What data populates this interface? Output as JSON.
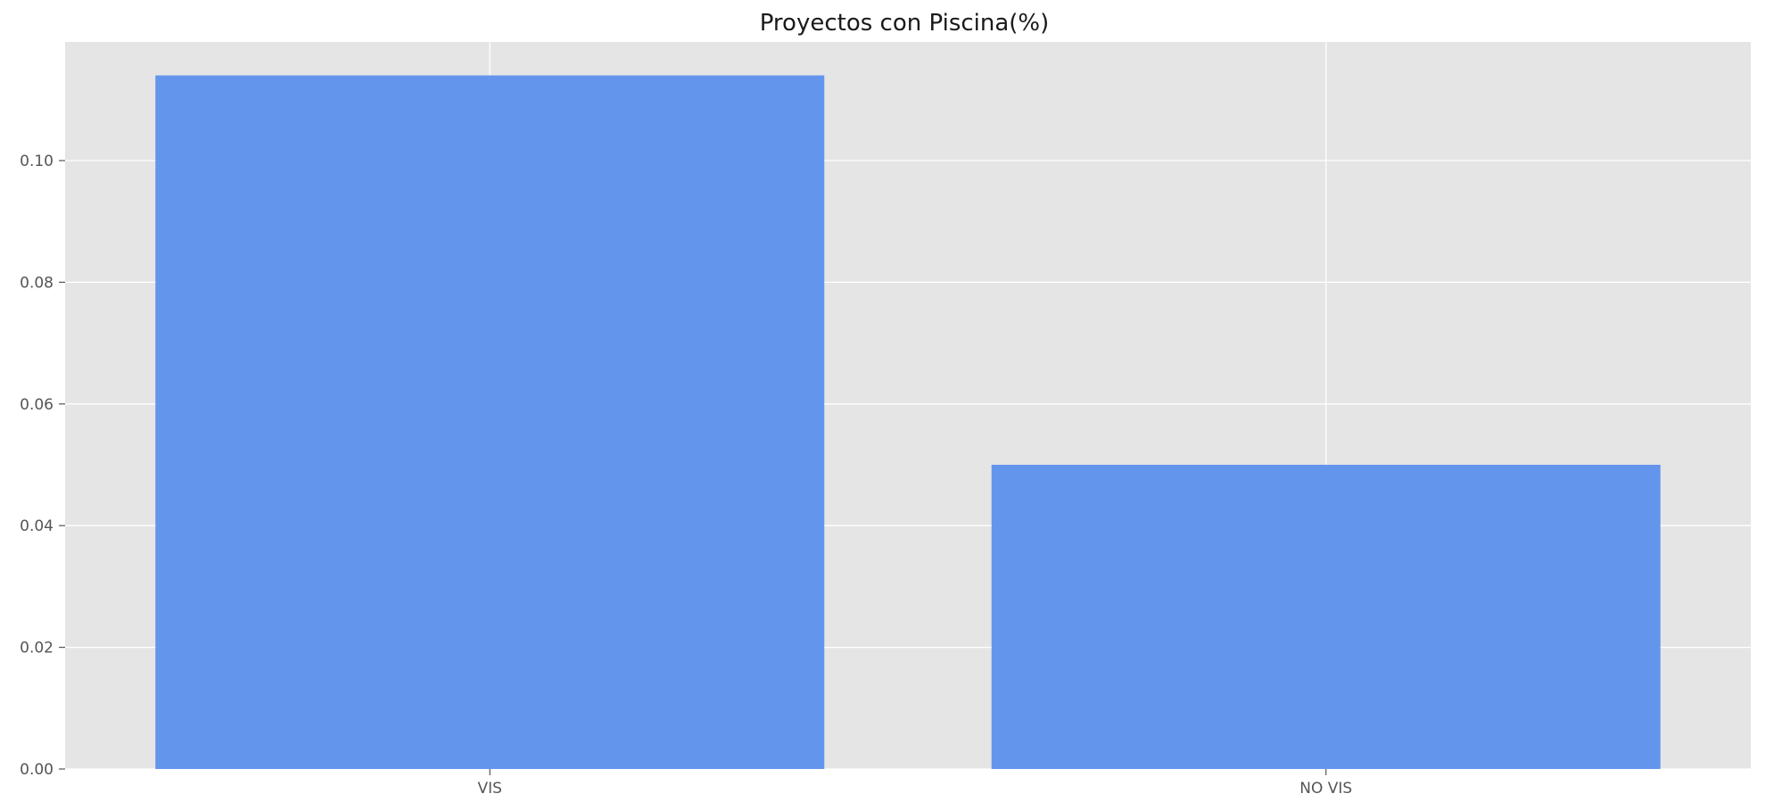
{
  "chart_data": {
    "type": "bar",
    "title": "Proyectos con Piscina(%)",
    "xlabel": "",
    "ylabel": "",
    "categories": [
      "VIS",
      "NO VIS"
    ],
    "values": [
      0.114,
      0.05
    ],
    "ylim": [
      0,
      0.1195
    ],
    "yticks": [
      0.0,
      0.02,
      0.04,
      0.06,
      0.08,
      0.1
    ],
    "ytick_labels": [
      "0.00",
      "0.02",
      "0.04",
      "0.06",
      "0.08",
      "0.10"
    ],
    "grid": true,
    "legend": "none",
    "colors": {
      "bar": "#6495ED",
      "plot_background": "#E5E5E5",
      "grid": "#FFFFFF",
      "tick_text": "#555555",
      "title_text": "#1A1A1A"
    }
  }
}
